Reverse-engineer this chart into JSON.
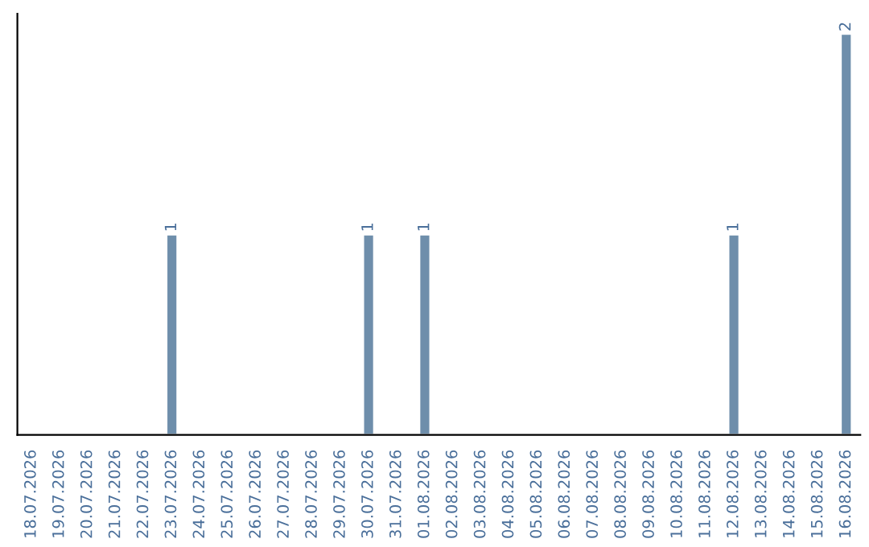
{
  "chart_data": {
    "type": "bar",
    "categories": [
      "18.07.2026",
      "19.07.2026",
      "20.07.2026",
      "21.07.2026",
      "22.07.2026",
      "23.07.2026",
      "24.07.2026",
      "25.07.2026",
      "26.07.2026",
      "27.07.2026",
      "28.07.2026",
      "29.07.2026",
      "30.07.2026",
      "31.07.2026",
      "01.08.2026",
      "02.08.2026",
      "03.08.2026",
      "04.08.2026",
      "05.08.2026",
      "06.08.2026",
      "07.08.2026",
      "08.08.2026",
      "09.08.2026",
      "10.08.2026",
      "11.08.2026",
      "12.08.2026",
      "13.08.2026",
      "14.08.2026",
      "15.08.2026",
      "16.08.2026"
    ],
    "values": [
      null,
      null,
      null,
      null,
      null,
      1,
      null,
      null,
      null,
      null,
      null,
      null,
      1,
      null,
      1,
      null,
      null,
      null,
      null,
      null,
      null,
      null,
      null,
      null,
      null,
      1,
      null,
      null,
      null,
      2
    ],
    "color": "#6e8eab",
    "ylim": [
      0,
      2.1
    ],
    "tick_labels": "x",
    "data_labels": true,
    "grid": false
  }
}
